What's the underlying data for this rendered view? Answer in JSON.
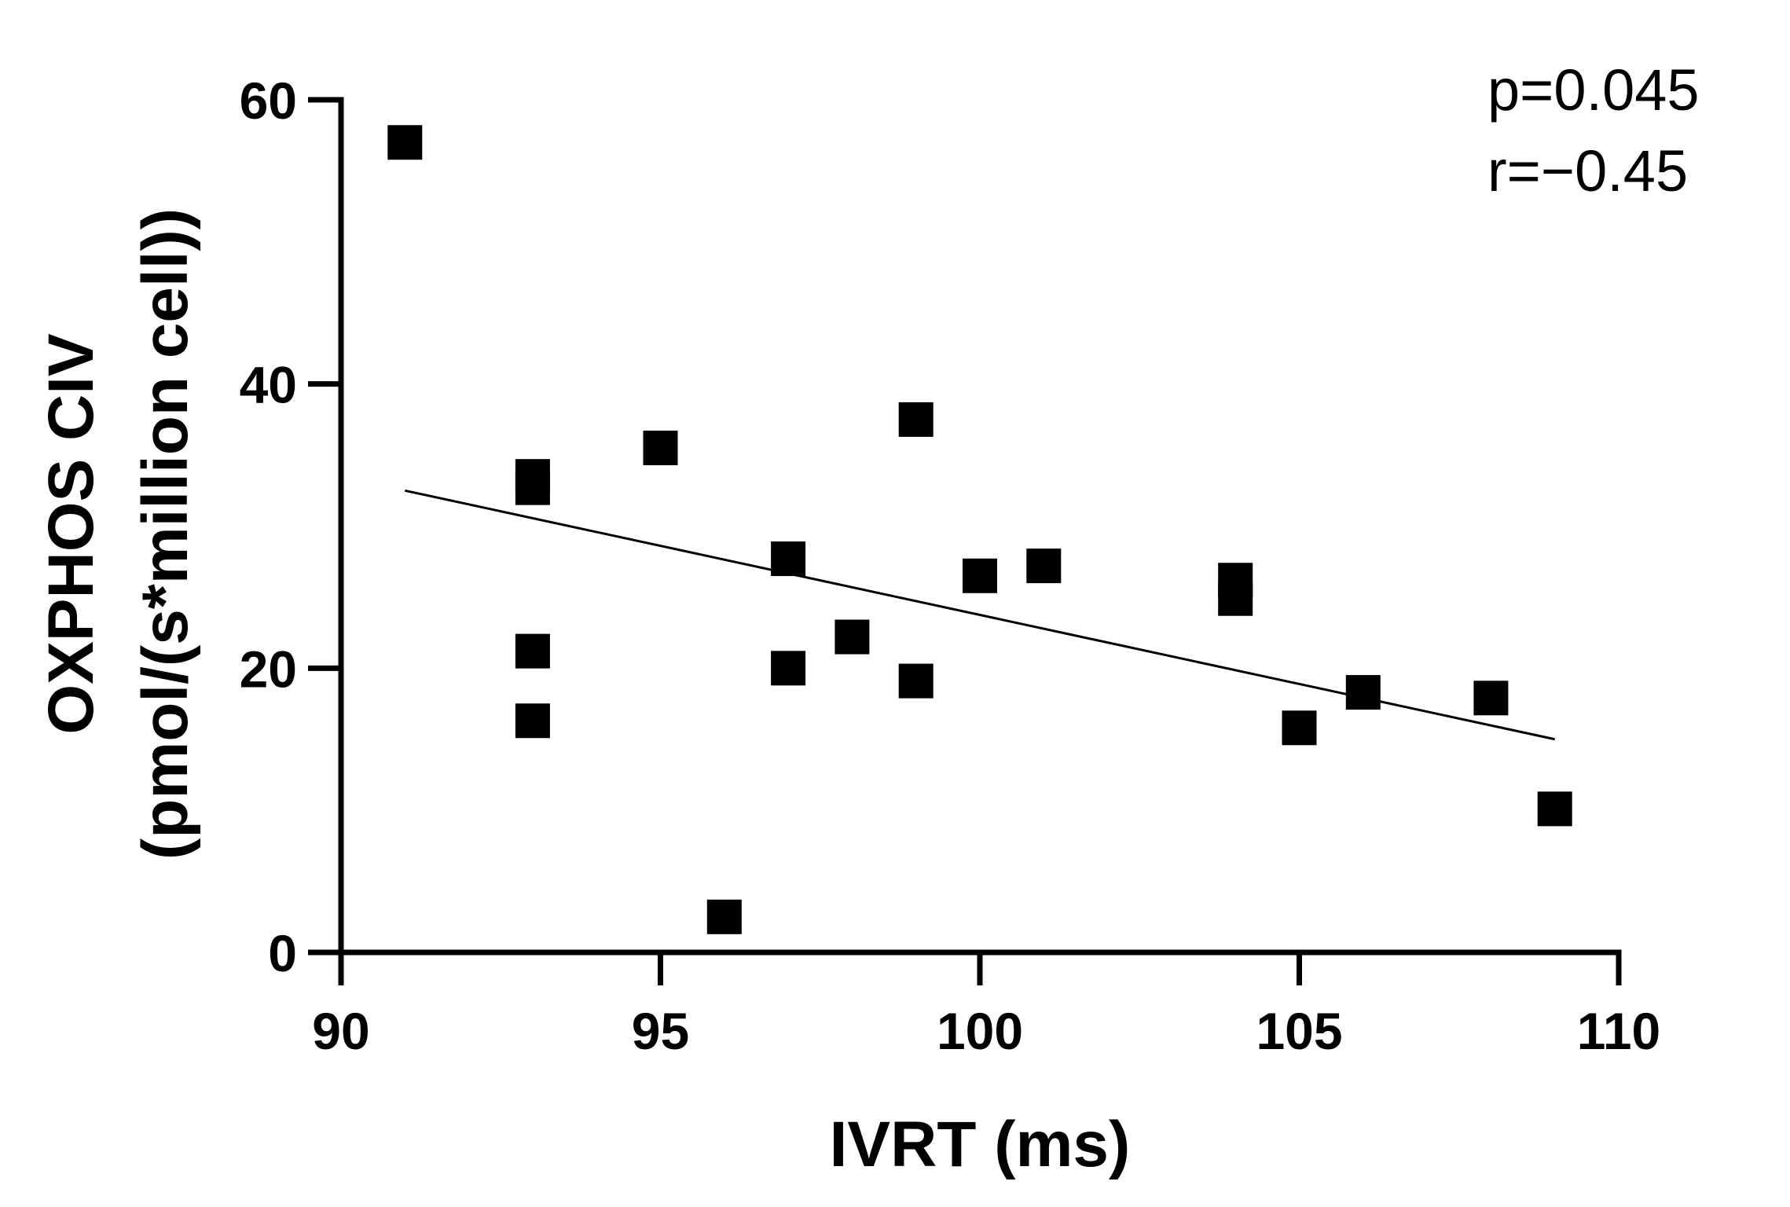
{
  "chart_data": {
    "type": "scatter",
    "title": "",
    "xlabel": "IVRT (ms)",
    "ylabel_line1": "OXPHOS CIV",
    "ylabel_line2": "(pmol/(s*million cell))",
    "xlim": [
      90,
      110
    ],
    "ylim": [
      0,
      60
    ],
    "x_ticks": [
      90,
      95,
      100,
      105,
      110
    ],
    "y_ticks": [
      0,
      20,
      40,
      60
    ],
    "x_tick_labels": [
      "90",
      "95",
      "100",
      "105",
      "110"
    ],
    "y_tick_labels": [
      "0",
      "20",
      "40",
      "60"
    ],
    "grid": false,
    "marker": "square",
    "points": [
      {
        "x": 91,
        "y": 57
      },
      {
        "x": 93,
        "y": 33.5
      },
      {
        "x": 93,
        "y": 32.7
      },
      {
        "x": 93,
        "y": 21.2
      },
      {
        "x": 93,
        "y": 16.3
      },
      {
        "x": 95,
        "y": 35.5
      },
      {
        "x": 96,
        "y": 2.5
      },
      {
        "x": 97,
        "y": 27.7
      },
      {
        "x": 97,
        "y": 20
      },
      {
        "x": 98,
        "y": 22.2
      },
      {
        "x": 99,
        "y": 37.5
      },
      {
        "x": 99,
        "y": 19.1
      },
      {
        "x": 100,
        "y": 26.5
      },
      {
        "x": 101,
        "y": 27.2
      },
      {
        "x": 104,
        "y": 26.2
      },
      {
        "x": 104,
        "y": 24.9
      },
      {
        "x": 105,
        "y": 15.8
      },
      {
        "x": 106,
        "y": 18.3
      },
      {
        "x": 108,
        "y": 17.9
      },
      {
        "x": 109,
        "y": 10.1
      }
    ],
    "regression_line": {
      "x": [
        91,
        109
      ],
      "y": [
        32.5,
        15
      ]
    },
    "annotations": [
      "p=0.045",
      "r=−0.45"
    ]
  }
}
